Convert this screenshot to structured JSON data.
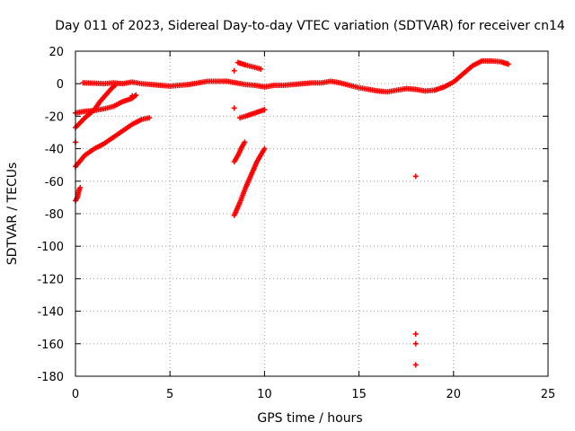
{
  "chart_data": {
    "type": "scatter",
    "title": "Day 011 of 2023, Sidereal Day-to-day VTEC variation (SDTVAR) for receiver cn14",
    "xlabel": "GPS time / hours",
    "ylabel": "SDTVAR / TECUs",
    "xlim": [
      0,
      25
    ],
    "ylim": [
      -180,
      20
    ],
    "xticks": [
      0,
      5,
      10,
      15,
      20,
      25
    ],
    "yticks": [
      20,
      0,
      -20,
      -40,
      -60,
      -80,
      -100,
      -120,
      -140,
      -160,
      -180
    ],
    "grid": true,
    "marker": "plus",
    "color": "#ff0000",
    "series": [
      {
        "name": "main-trace",
        "points": [
          [
            0.4,
            0.5
          ],
          [
            1.0,
            0.3
          ],
          [
            1.5,
            0.0
          ],
          [
            2.0,
            0.5
          ],
          [
            2.5,
            0.0
          ],
          [
            3.0,
            1.0
          ],
          [
            3.5,
            0.0
          ],
          [
            4.0,
            -0.5
          ],
          [
            4.5,
            -1.0
          ],
          [
            5.0,
            -1.5
          ],
          [
            5.5,
            -1.0
          ],
          [
            6.0,
            -0.5
          ],
          [
            6.5,
            0.5
          ],
          [
            7.0,
            1.5
          ],
          [
            7.5,
            1.5
          ],
          [
            8.0,
            1.5
          ],
          [
            8.5,
            0.5
          ],
          [
            9.0,
            -0.5
          ],
          [
            9.5,
            -1.0
          ],
          [
            10.0,
            -2.0
          ],
          [
            10.5,
            -1.0
          ],
          [
            11.0,
            -1.0
          ],
          [
            11.5,
            -0.5
          ],
          [
            12.0,
            0.0
          ],
          [
            12.5,
            0.5
          ],
          [
            13.0,
            0.5
          ],
          [
            13.5,
            1.5
          ],
          [
            14.0,
            0.5
          ],
          [
            14.5,
            -1.0
          ],
          [
            15.0,
            -2.5
          ],
          [
            15.5,
            -3.5
          ],
          [
            16.0,
            -4.5
          ],
          [
            16.5,
            -5.0
          ],
          [
            17.0,
            -4.0
          ],
          [
            17.5,
            -3.0
          ],
          [
            18.0,
            -3.5
          ],
          [
            18.5,
            -4.5
          ],
          [
            19.0,
            -4.0
          ],
          [
            19.5,
            -2.0
          ],
          [
            20.0,
            1.0
          ],
          [
            20.5,
            6.0
          ],
          [
            21.0,
            11.0
          ],
          [
            21.5,
            14.0
          ],
          [
            22.0,
            14.0
          ],
          [
            22.5,
            13.5
          ],
          [
            22.9,
            12.0
          ]
        ]
      },
      {
        "name": "arc-a",
        "points": [
          [
            0.0,
            -18.0
          ],
          [
            0.5,
            -17.0
          ],
          [
            1.0,
            -16.5
          ],
          [
            1.5,
            -15.5
          ],
          [
            2.0,
            -14.0
          ],
          [
            2.5,
            -11.0
          ],
          [
            3.0,
            -9.0
          ],
          [
            3.2,
            -7.0
          ]
        ]
      },
      {
        "name": "arc-b",
        "points": [
          [
            0.0,
            -27.0
          ],
          [
            0.5,
            -21.0
          ],
          [
            1.0,
            -16.0
          ],
          [
            1.3,
            -11.0
          ],
          [
            1.6,
            -7.0
          ],
          [
            1.9,
            -3.0
          ],
          [
            2.1,
            -1.0
          ]
        ]
      },
      {
        "name": "arc-c",
        "points": [
          [
            0.0,
            -51.0
          ],
          [
            0.5,
            -44.0
          ],
          [
            1.0,
            -40.0
          ],
          [
            1.5,
            -37.0
          ],
          [
            2.0,
            -33.0
          ],
          [
            2.5,
            -29.0
          ],
          [
            3.0,
            -25.0
          ],
          [
            3.5,
            -22.0
          ],
          [
            3.9,
            -21.0
          ]
        ]
      },
      {
        "name": "arc-d",
        "points": [
          [
            0.0,
            -72.0
          ],
          [
            0.1,
            -70.0
          ],
          [
            0.2,
            -65.0
          ],
          [
            0.25,
            -64.0
          ]
        ]
      },
      {
        "name": "arc-e",
        "points": [
          [
            8.4,
            -81.0
          ],
          [
            8.7,
            -73.0
          ],
          [
            9.0,
            -64.0
          ],
          [
            9.3,
            -56.0
          ],
          [
            9.6,
            -48.0
          ],
          [
            10.0,
            -40.0
          ]
        ]
      },
      {
        "name": "arc-f",
        "points": [
          [
            8.4,
            -48.0
          ],
          [
            8.6,
            -44.0
          ],
          [
            8.8,
            -39.0
          ],
          [
            8.95,
            -36.0
          ]
        ]
      },
      {
        "name": "arc-g",
        "points": [
          [
            8.7,
            -21.0
          ],
          [
            9.0,
            -20.0
          ],
          [
            9.5,
            -18.0
          ],
          [
            10.0,
            -16.0
          ]
        ]
      },
      {
        "name": "arc-h",
        "points": [
          [
            8.6,
            13.0
          ],
          [
            9.0,
            11.5
          ],
          [
            9.5,
            10.0
          ],
          [
            9.8,
            9.0
          ]
        ]
      },
      {
        "name": "isolated",
        "points": [
          [
            0.0,
            -36.0
          ],
          [
            8.4,
            -15.0
          ],
          [
            8.4,
            8.0
          ],
          [
            3.0,
            -7.5
          ],
          [
            18.0,
            -57.0
          ],
          [
            18.0,
            -154.0
          ],
          [
            18.0,
            -160.0
          ],
          [
            18.0,
            -173.0
          ]
        ]
      }
    ]
  }
}
